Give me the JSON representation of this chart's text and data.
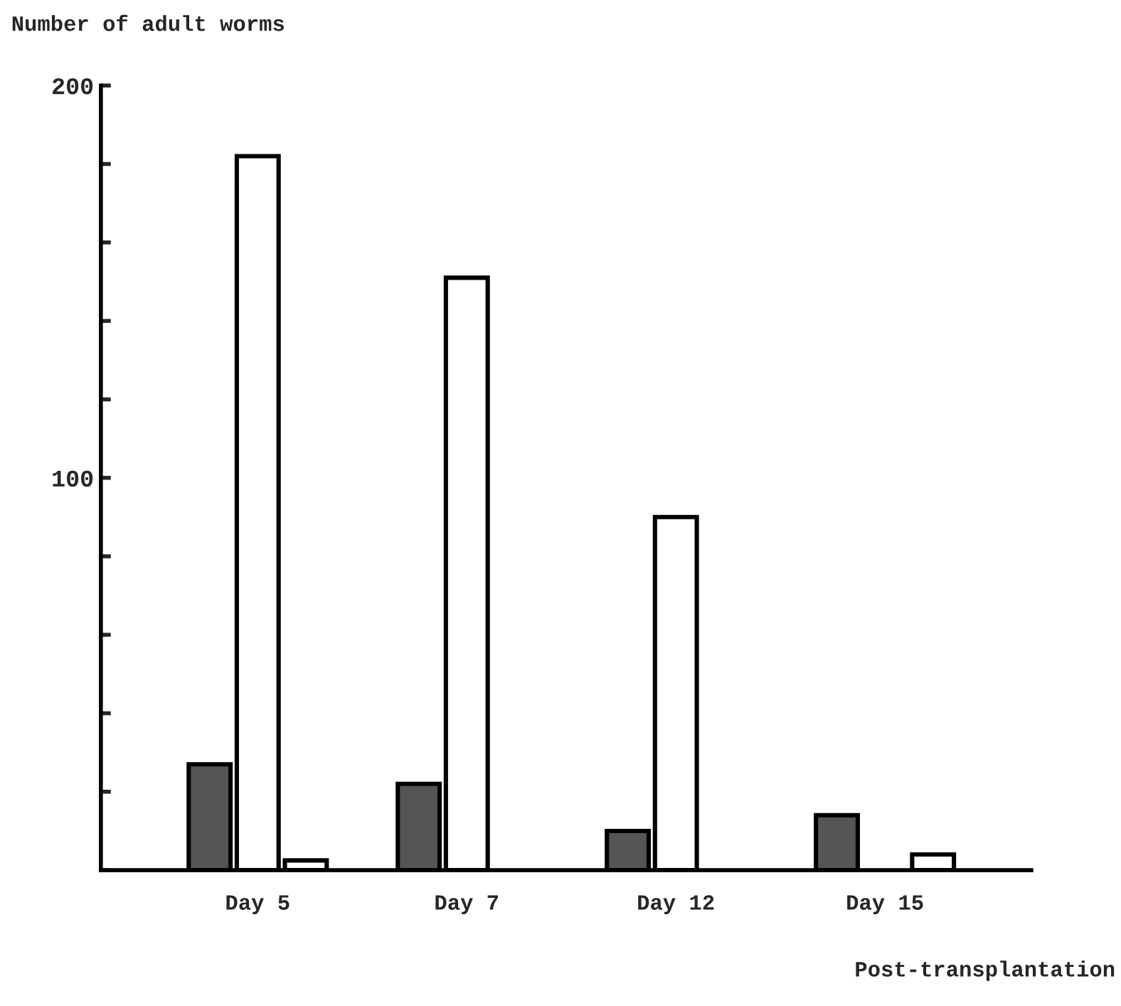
{
  "chart_data": {
    "type": "bar",
    "ylabel": "Number of adult worms",
    "xlabel": "Post-transplantation",
    "categories": [
      "Day 5",
      "Day 7",
      "Day 12",
      "Day 15"
    ],
    "series": [
      {
        "color": "#555555",
        "values": [
          27,
          22,
          10,
          14
        ]
      },
      {
        "color": "#ffffff",
        "values": [
          182,
          151,
          90,
          0
        ]
      },
      {
        "color": "#ffffff",
        "values": [
          2.5,
          0,
          0,
          4
        ]
      }
    ],
    "ylim": [
      0,
      200
    ],
    "yticks": [
      {
        "value": 0,
        "label": null
      },
      {
        "value": 20,
        "label": null
      },
      {
        "value": 40,
        "label": null
      },
      {
        "value": 60,
        "label": null
      },
      {
        "value": 80,
        "label": null
      },
      100,
      {
        "value": 120,
        "label": null
      },
      {
        "value": 140,
        "label": null
      },
      {
        "value": 160,
        "label": null
      },
      {
        "value": 180,
        "label": null
      },
      200
    ],
    "grid": false
  }
}
